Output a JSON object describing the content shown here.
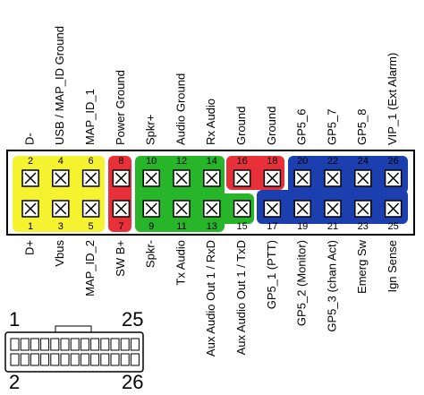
{
  "top_row": {
    "pins": [
      2,
      4,
      6,
      8,
      10,
      12,
      14,
      16,
      18,
      20,
      22,
      24,
      26
    ],
    "labels": [
      "D-",
      "USB / MAP_ID Ground",
      "MAP_ID_1",
      "Power Ground",
      "Spkr+",
      "Audio Ground",
      "Rx Audio",
      "Ground",
      "Ground",
      "GP5_6",
      "GP5_7",
      "GP5_8",
      "VIP_1 (Ext Alarm)"
    ]
  },
  "bottom_row": {
    "pins": [
      1,
      3,
      5,
      7,
      9,
      11,
      13,
      15,
      17,
      19,
      21,
      23,
      25
    ],
    "labels": [
      "D+",
      "Vbus",
      "MAP_ID_2",
      "SW B+",
      "Spkr-",
      "Tx Audio",
      "Aux Audio Out 1 / RxD",
      "Aux Audio Out 1 / TxD",
      "GP5_1 (PTT)",
      "GP5_2 (Monitor)",
      "GP5_3 (chan Act)",
      "Emerg Sw",
      "Ign Sense"
    ]
  },
  "small_connector": {
    "top_left": "1",
    "top_right": "25",
    "bottom_left": "2",
    "bottom_right": "26"
  }
}
